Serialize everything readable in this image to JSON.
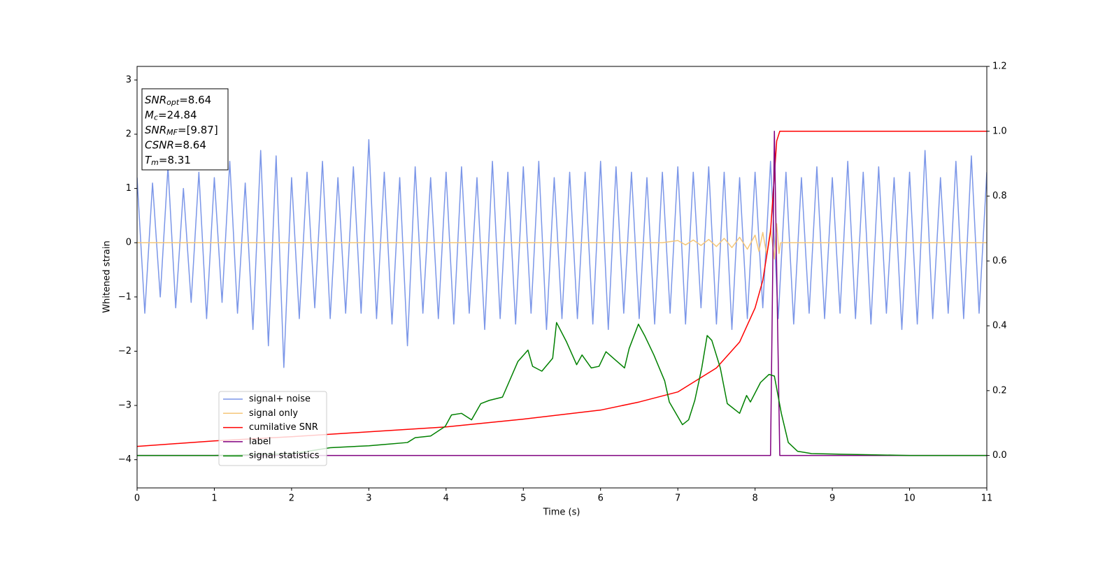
{
  "chart_data": {
    "type": "line",
    "xlabel": "Time (s)",
    "ylabel": "Whitened strain",
    "xlim": [
      0,
      11
    ],
    "xticks": [
      0,
      1,
      2,
      3,
      4,
      5,
      6,
      7,
      8,
      9,
      10,
      11
    ],
    "ylim": [
      -4.52,
      3.25
    ],
    "yticks": [
      {
        "value": -4,
        "label": "−4"
      },
      {
        "value": -3,
        "label": "−3"
      },
      {
        "value": -2,
        "label": "−2"
      },
      {
        "value": -1,
        "label": "−1"
      },
      0,
      1,
      2,
      3
    ],
    "y2lim": [
      -0.1,
      1.2
    ],
    "y2ticks": [
      {
        "value": 0,
        "label": "0.0"
      },
      {
        "value": 0.2,
        "label": "0.2"
      },
      {
        "value": 0.4,
        "label": "0.4"
      },
      {
        "value": 0.6,
        "label": "0.6"
      },
      {
        "value": 0.8,
        "label": "0.8"
      },
      {
        "value": 1,
        "label": "1.0"
      },
      {
        "value": 1.2,
        "label": "1.2"
      }
    ],
    "legend": "lower left",
    "annotations": [
      {
        "symbol": "SNR",
        "subscript": "opt",
        "text": "=8.64"
      },
      {
        "symbol": "M",
        "subscript": "c",
        "text": "=24.84"
      },
      {
        "symbol": "SNR",
        "subscript": "MF",
        "text": "=[9.87]"
      },
      {
        "symbol": "CSNR",
        "text": "=8.64"
      },
      {
        "symbol": "T",
        "subscript": "m",
        "text": "=8.31"
      }
    ],
    "series": [
      {
        "name": "signal+ noise",
        "color": "#7b96e8",
        "x": [
          0,
          0.1,
          0.2,
          0.3,
          0.4,
          0.5,
          0.6,
          0.7,
          0.8,
          0.9,
          1,
          1.1,
          1.2,
          1.3,
          1.4,
          1.5,
          1.6,
          1.7,
          1.8,
          1.9,
          2,
          2.1,
          2.2,
          2.3,
          2.4,
          2.5,
          2.6,
          2.7,
          2.8,
          2.9,
          3,
          3.1,
          3.2,
          3.3,
          3.4,
          3.5,
          3.6,
          3.7,
          3.8,
          3.9,
          4,
          4.1,
          4.2,
          4.3,
          4.4,
          4.5,
          4.6,
          4.7,
          4.8,
          4.9,
          5,
          5.1,
          5.2,
          5.3,
          5.4,
          5.5,
          5.6,
          5.7,
          5.8,
          5.9,
          6,
          6.1,
          6.2,
          6.3,
          6.4,
          6.5,
          6.6,
          6.7,
          6.8,
          6.9,
          7,
          7.1,
          7.2,
          7.3,
          7.4,
          7.5,
          7.6,
          7.7,
          7.8,
          7.9,
          8,
          8.1,
          8.2,
          8.3,
          8.4,
          8.5,
          8.6,
          8.7,
          8.8,
          8.9,
          9,
          9.1,
          9.2,
          9.3,
          9.4,
          9.5,
          9.6,
          9.7,
          9.8,
          9.9,
          10,
          10.1,
          10.2,
          10.3,
          10.4,
          10.5,
          10.6,
          10.7,
          10.8,
          10.9,
          11
        ],
        "values": [
          1.2,
          -1.3,
          1.1,
          -1.0,
          1.4,
          -1.2,
          1.0,
          -1.1,
          1.3,
          -1.4,
          1.2,
          -1.1,
          1.5,
          -1.3,
          1.1,
          -1.6,
          1.7,
          -1.9,
          1.6,
          -2.3,
          1.2,
          -1.4,
          1.3,
          -1.2,
          1.5,
          -1.4,
          1.2,
          -1.3,
          1.4,
          -1.3,
          1.9,
          -1.4,
          1.3,
          -1.5,
          1.2,
          -1.9,
          1.4,
          -1.3,
          1.2,
          -1.4,
          1.3,
          -1.5,
          1.4,
          -1.3,
          1.2,
          -1.6,
          1.5,
          -1.4,
          1.3,
          -1.5,
          1.4,
          -1.3,
          1.5,
          -1.6,
          1.2,
          -1.4,
          1.3,
          -1.4,
          1.3,
          -1.5,
          1.5,
          -1.6,
          1.4,
          -1.3,
          1.3,
          -1.4,
          1.2,
          -1.5,
          1.3,
          -1.3,
          1.4,
          -1.5,
          1.3,
          -1.2,
          1.4,
          -1.5,
          1.3,
          -1.6,
          1.2,
          -1.4,
          1.3,
          -1.2,
          1.5,
          -1.4,
          1.3,
          -1.5,
          1.2,
          -1.3,
          1.4,
          -1.4,
          1.2,
          -1.3,
          1.5,
          -1.4,
          1.3,
          -1.5,
          1.4,
          -1.3,
          1.2,
          -1.6,
          1.3,
          -1.5,
          1.7,
          -1.4,
          1.2,
          -1.3,
          1.5,
          -1.4,
          1.6,
          -1.3,
          1.3
        ]
      },
      {
        "name": "signal only",
        "color": "#f5c77a",
        "x": [
          0,
          6.8,
          7.0,
          7.1,
          7.2,
          7.3,
          7.4,
          7.5,
          7.6,
          7.7,
          7.8,
          7.9,
          8.0,
          8.05,
          8.1,
          8.15,
          8.2,
          8.25,
          8.28,
          8.31,
          8.33,
          11
        ],
        "values": [
          0,
          0,
          0.04,
          -0.04,
          0.05,
          -0.05,
          0.06,
          -0.07,
          0.08,
          -0.09,
          0.1,
          -0.12,
          0.14,
          -0.16,
          0.19,
          -0.22,
          0.26,
          -0.3,
          0.35,
          -0.2,
          0,
          0
        ]
      },
      {
        "name": "cumilative SNR",
        "color": "#ff0000",
        "axis": "y2",
        "x": [
          0,
          1,
          2,
          3,
          4,
          5,
          6,
          6.5,
          7,
          7.5,
          7.8,
          8.0,
          8.1,
          8.2,
          8.28,
          8.32,
          11
        ],
        "values": [
          0.028,
          0.045,
          0.058,
          0.073,
          0.088,
          0.112,
          0.14,
          0.165,
          0.196,
          0.27,
          0.35,
          0.455,
          0.54,
          0.69,
          0.97,
          1.0,
          1.0
        ]
      },
      {
        "name": "label",
        "color": "#800080",
        "axis": "y2",
        "x": [
          0,
          8.2,
          8.25,
          8.32,
          11
        ],
        "values": [
          0,
          0,
          1.0,
          0,
          0
        ]
      },
      {
        "name": "signal statistics",
        "color": "#008000",
        "axis": "y2",
        "x": [
          0,
          1,
          2,
          2.5,
          3,
          3.5,
          3.6,
          3.8,
          3.99,
          4.07,
          4.2,
          4.33,
          4.45,
          4.56,
          4.73,
          4.93,
          5.06,
          5.12,
          5.24,
          5.38,
          5.43,
          5.56,
          5.69,
          5.76,
          5.88,
          5.98,
          6.07,
          6.19,
          6.31,
          6.37,
          6.49,
          6.57,
          6.69,
          6.83,
          6.89,
          7.06,
          7.14,
          7.22,
          7.31,
          7.38,
          7.44,
          7.55,
          7.64,
          7.8,
          7.89,
          7.94,
          8.07,
          8.18,
          8.25,
          8.34,
          8.43,
          8.55,
          8.73,
          9.09,
          10,
          11
        ],
        "values": [
          0,
          0,
          0.005,
          0.024,
          0.03,
          0.04,
          0.055,
          0.06,
          0.09,
          0.125,
          0.13,
          0.11,
          0.16,
          0.17,
          0.18,
          0.29,
          0.325,
          0.275,
          0.26,
          0.3,
          0.41,
          0.35,
          0.28,
          0.31,
          0.27,
          0.275,
          0.32,
          0.295,
          0.27,
          0.33,
          0.405,
          0.37,
          0.31,
          0.23,
          0.165,
          0.095,
          0.11,
          0.17,
          0.27,
          0.37,
          0.355,
          0.27,
          0.16,
          0.13,
          0.185,
          0.165,
          0.225,
          0.25,
          0.245,
          0.13,
          0.04,
          0.013,
          0.006,
          0.004,
          0,
          0
        ]
      }
    ]
  }
}
